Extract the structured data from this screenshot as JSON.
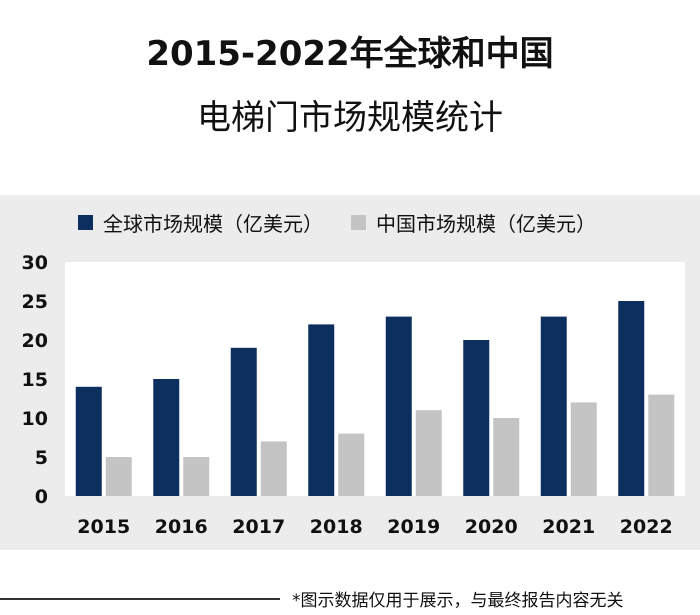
{
  "chart_data": {
    "type": "bar",
    "title_line1": "2015-2022年全球和中国",
    "title_line2": "电梯门市场规模统计",
    "categories": [
      "2015",
      "2016",
      "2017",
      "2018",
      "2019",
      "2020",
      "2021",
      "2022"
    ],
    "series": [
      {
        "name": "全球市场规模（亿美元）",
        "color": "#0d2f5f",
        "values": [
          14,
          15,
          19,
          22,
          23,
          20,
          23,
          25
        ]
      },
      {
        "name": "中国市场规模（亿美元）",
        "color": "#c4c4c4",
        "values": [
          5,
          5,
          7,
          8,
          11,
          10,
          12,
          13
        ]
      }
    ],
    "ylim": [
      0,
      30
    ],
    "yticks": [
      "0",
      "5",
      "10",
      "15",
      "20",
      "25",
      "30"
    ],
    "grid": false,
    "legend_position": "top"
  },
  "footnote": "*图示数据仅用于展示，与最终报告内容无关"
}
